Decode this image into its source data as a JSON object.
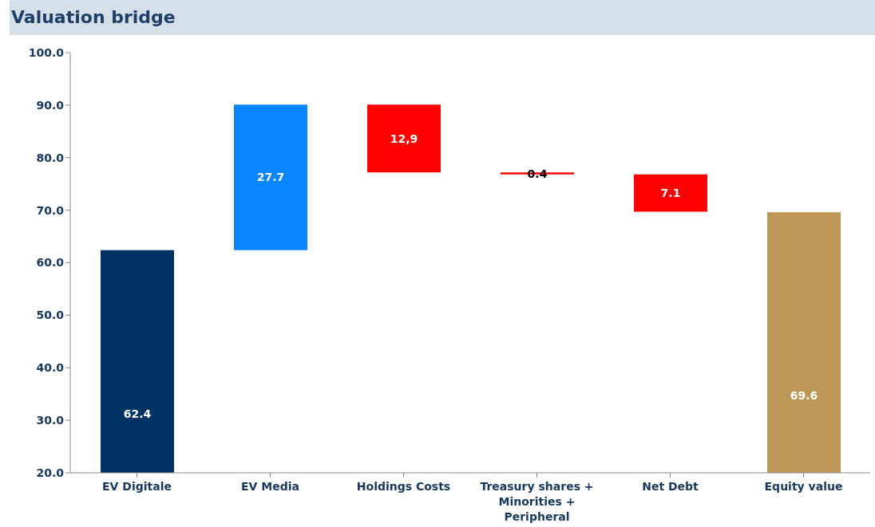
{
  "chart_data": {
    "type": "bar",
    "title": "Valuation bridge",
    "categories": [
      "EV Digitale",
      "EV Media",
      "Holdings Costs",
      "Treasury shares + Minorities + Peripheral",
      "Net Debt",
      "Equity value"
    ],
    "values": [
      62.4,
      27.7,
      -12.9,
      -0.4,
      -7.1,
      69.6
    ],
    "base": [
      0,
      62.4,
      90.1,
      77.2,
      76.8,
      0
    ],
    "colors": [
      "#003363",
      "#0a85ff",
      "#ff0000",
      "#ff0000",
      "#ff0000",
      "#bd9755"
    ],
    "value_labels": [
      "62.4",
      "27.7",
      "12,9",
      "0.4",
      "7.1",
      "69.6"
    ],
    "ylim": [
      20,
      100
    ],
    "yticks": [
      {
        "value": 20,
        "label": "20.0"
      },
      {
        "value": 30,
        "label": "30.0"
      },
      {
        "value": 40,
        "label": "40.0"
      },
      {
        "value": 50,
        "label": "50.0"
      },
      {
        "value": 60,
        "label": "60.0"
      },
      {
        "value": 70,
        "label": "70.0"
      },
      {
        "value": 80,
        "label": "80.0"
      },
      {
        "value": 90,
        "label": "90.0"
      },
      {
        "value": 100,
        "label": "100.0"
      }
    ],
    "grid": false,
    "legend": false
  }
}
